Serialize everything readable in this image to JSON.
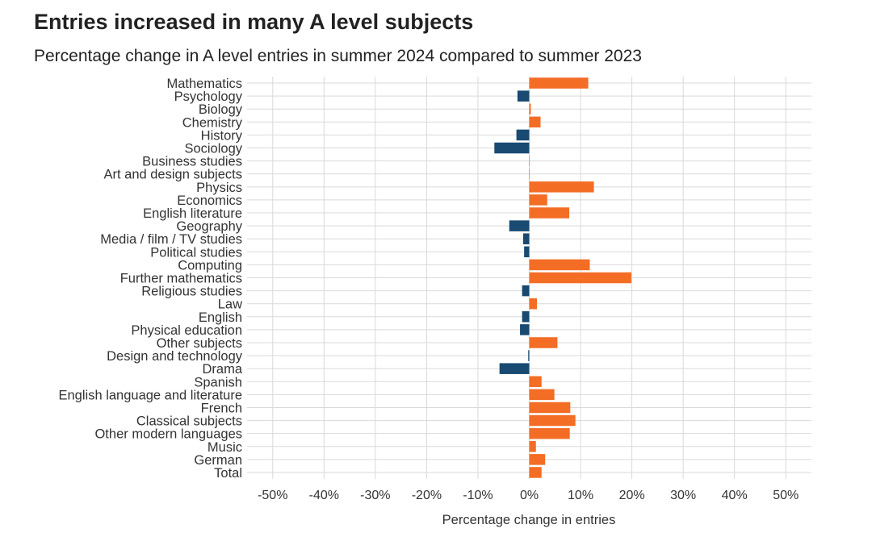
{
  "title": "Entries increased in many A level subjects",
  "subtitle": "Percentage change in A level entries in summer 2024 compared to summer 2023",
  "colors": {
    "positive": "#f46d25",
    "negative": "#184a72",
    "grid": "#d9d9d9"
  },
  "chart_data": {
    "type": "bar",
    "orientation": "horizontal",
    "xlabel": "Percentage change in entries",
    "ylabel": "",
    "xlim": [
      -55,
      55
    ],
    "xticks": [
      -50,
      -40,
      -30,
      -20,
      -10,
      0,
      10,
      20,
      30,
      40,
      50
    ],
    "xtick_labels": [
      "-50%",
      "-40%",
      "-30%",
      "-20%",
      "-10%",
      "0%",
      "10%",
      "20%",
      "30%",
      "40%",
      "50%"
    ],
    "grid": true,
    "categories": [
      "Mathematics",
      "Psychology",
      "Biology",
      "Chemistry",
      "History",
      "Sociology",
      "Business studies",
      "Art and design subjects",
      "Physics",
      "Economics",
      "English literature",
      "Geography",
      "Media / film / TV studies",
      "Political studies",
      "Computing",
      "Further mathematics",
      "Religious studies",
      "Law",
      "English",
      "Physical education",
      "Other subjects",
      "Design and technology",
      "Drama",
      "Spanish",
      "English language and literature",
      "French",
      "Classical subjects",
      "Other modern languages",
      "Music",
      "German",
      "Total"
    ],
    "values": [
      11.5,
      -2.3,
      0.3,
      2.2,
      -2.5,
      -6.8,
      0.0,
      0.0,
      12.6,
      3.5,
      7.8,
      -3.9,
      -1.2,
      -1.0,
      11.8,
      19.9,
      -1.4,
      1.5,
      -1.4,
      -1.8,
      5.5,
      -0.2,
      -5.8,
      2.4,
      4.9,
      8.0,
      9.0,
      7.9,
      1.3,
      3.1,
      2.4
    ]
  }
}
